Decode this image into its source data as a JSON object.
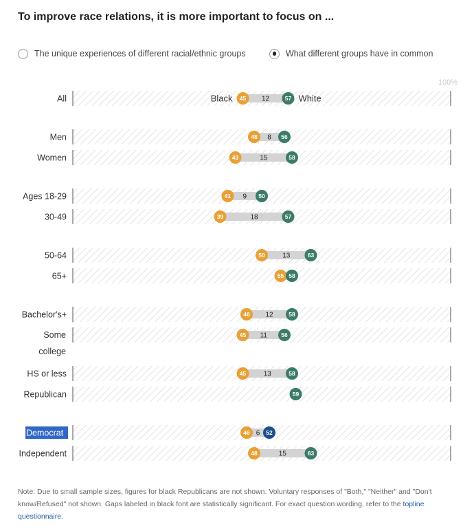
{
  "title": "To improve race relations, it is more important to focus on ...",
  "toggle": {
    "option1": "The unique experiences of different racial/ethnic groups",
    "option2": "What different groups have in common",
    "selected": 2
  },
  "colors": {
    "black": "#e8a035",
    "white": "#3b7b69",
    "white_highlight": "#1b4f8c",
    "gap_bar": "#d3d3d3",
    "hatch": "#e4e4e4",
    "highlight_bg": "#3167c6"
  },
  "chart_data": {
    "type": "dot-range",
    "xlim": [
      0,
      100
    ],
    "pct_label": "100%",
    "series_labels": {
      "black": "Black",
      "white": "White"
    },
    "rows": [
      {
        "label": "All",
        "black": 45,
        "white": 57,
        "gap": "12",
        "series_labels": true
      },
      {
        "label": "Men",
        "black": 48,
        "white": 56,
        "gap": "8"
      },
      {
        "label": "Women",
        "black": 43,
        "white": 58,
        "gap": "15"
      },
      {
        "label": "Ages 18-29",
        "black": 41,
        "white": 50,
        "gap": "9"
      },
      {
        "label": "30-49",
        "black": 39,
        "white": 57,
        "gap": "18"
      },
      {
        "label": "50-64",
        "black": 50,
        "white": 63,
        "gap": "13"
      },
      {
        "label": "65+",
        "black": 55,
        "white": 58,
        "gap": ""
      },
      {
        "label": "Bachelor's+",
        "black": 46,
        "white": 58,
        "gap": "12"
      },
      {
        "label": "Some college",
        "black": 45,
        "white": 56,
        "gap": "11"
      },
      {
        "label": "HS or less",
        "black": 45,
        "white": 58,
        "gap": "13"
      },
      {
        "label": "Republican",
        "black": null,
        "white": 59,
        "gap": ""
      },
      {
        "label": "Democrat",
        "black": 46,
        "white": 52,
        "gap": "6",
        "highlighted": true
      },
      {
        "label": "Independent",
        "black": 48,
        "white": 63,
        "gap": "15"
      }
    ]
  },
  "note": {
    "text": "Note: Due to small sample sizes, figures for black Republicans are not shown. Voluntary responses of \"Both,\" \"Neither\" and \"Don't know/Refused\" not shown. Gaps labeled in black font are statistically significant. For exact question wording, refer to the ",
    "link": "topline questionnaire",
    "end": "."
  }
}
